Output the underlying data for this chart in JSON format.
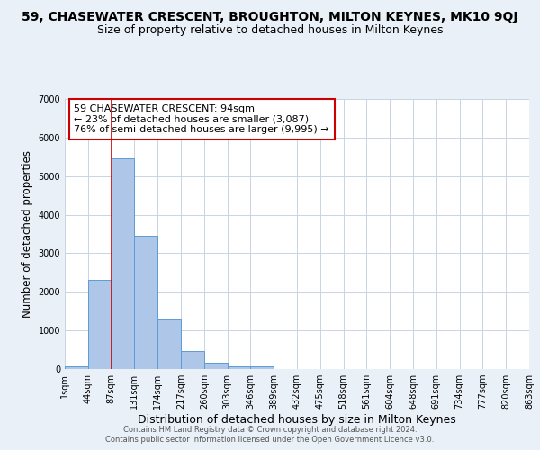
{
  "title_line1": "59, CHASEWATER CRESCENT, BROUGHTON, MILTON KEYNES, MK10 9QJ",
  "title_line2": "Size of property relative to detached houses in Milton Keynes",
  "xlabel": "Distribution of detached houses by size in Milton Keynes",
  "ylabel": "Number of detached properties",
  "bar_values": [
    75,
    2300,
    5450,
    3450,
    1300,
    470,
    160,
    80,
    80,
    0,
    0,
    0,
    0,
    0,
    0,
    0,
    0,
    0,
    0,
    0
  ],
  "bar_labels": [
    "1sqm",
    "44sqm",
    "87sqm",
    "131sqm",
    "174sqm",
    "217sqm",
    "260sqm",
    "303sqm",
    "346sqm",
    "389sqm",
    "432sqm",
    "475sqm",
    "518sqm",
    "561sqm",
    "604sqm",
    "648sqm",
    "691sqm",
    "734sqm",
    "777sqm",
    "820sqm",
    "863sqm"
  ],
  "bar_color": "#aec6e8",
  "bar_edge_color": "#5b9bd5",
  "vline_color": "#cc0000",
  "ylim": [
    0,
    7000
  ],
  "annotation_text": "59 CHASEWATER CRESCENT: 94sqm\n← 23% of detached houses are smaller (3,087)\n76% of semi-detached houses are larger (9,995) →",
  "annotation_box_color": "white",
  "annotation_box_edge": "#cc0000",
  "footer_line1": "Contains HM Land Registry data © Crown copyright and database right 2024.",
  "footer_line2": "Contains public sector information licensed under the Open Government Licence v3.0.",
  "background_color": "#eaf0f8",
  "plot_background": "white",
  "grid_color": "#c8d4e4",
  "title_fontsize": 10,
  "subtitle_fontsize": 9,
  "ylabel_fontsize": 8.5,
  "xlabel_fontsize": 9,
  "tick_fontsize": 7,
  "annotation_fontsize": 8,
  "footer_fontsize": 6
}
